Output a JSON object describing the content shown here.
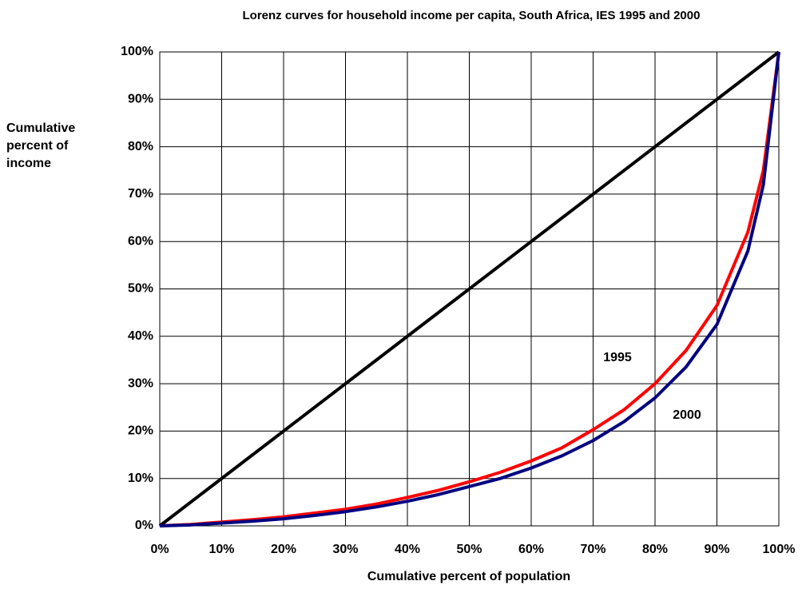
{
  "chart_data": {
    "type": "line",
    "title": "Lorenz curves for household income per capita, South Africa, IES 1995 and 2000",
    "x_label": "Cumulative percent of population",
    "y_label": "Cumulative percent of income",
    "xlim": [
      0,
      100
    ],
    "ylim": [
      0,
      100
    ],
    "xticks": [
      {
        "value": 0,
        "label": "0%"
      },
      {
        "value": 10,
        "label": "10%"
      },
      {
        "value": 20,
        "label": "20%"
      },
      {
        "value": 30,
        "label": "30%"
      },
      {
        "value": 40,
        "label": "40%"
      },
      {
        "value": 50,
        "label": "50%"
      },
      {
        "value": 60,
        "label": "60%"
      },
      {
        "value": 70,
        "label": "70%"
      },
      {
        "value": 80,
        "label": "80%"
      },
      {
        "value": 90,
        "label": "90%"
      },
      {
        "value": 100,
        "label": "100%"
      }
    ],
    "yticks": [
      {
        "value": 0,
        "label": "0%"
      },
      {
        "value": 10,
        "label": "10%"
      },
      {
        "value": 20,
        "label": "20%"
      },
      {
        "value": 30,
        "label": "30%"
      },
      {
        "value": 40,
        "label": "40%"
      },
      {
        "value": 50,
        "label": "50%"
      },
      {
        "value": 60,
        "label": "60%"
      },
      {
        "value": 70,
        "label": "70%"
      },
      {
        "value": 80,
        "label": "80%"
      },
      {
        "value": 90,
        "label": "90%"
      },
      {
        "value": 100,
        "label": "100%"
      }
    ],
    "grid": true,
    "series": [
      {
        "color": "#000000",
        "x": [
          0,
          100
        ],
        "values": [
          0,
          100
        ]
      },
      {
        "name": "1995",
        "color": "#ff0000",
        "x": [
          0,
          5,
          10,
          15,
          20,
          25,
          30,
          35,
          40,
          45,
          50,
          55,
          60,
          65,
          70,
          75,
          80,
          85,
          90,
          95,
          97.5,
          100
        ],
        "values": [
          0,
          0.3,
          0.8,
          1.3,
          1.9,
          2.7,
          3.5,
          4.6,
          6,
          7.5,
          9.3,
          11.3,
          13.7,
          16.5,
          20.3,
          24.5,
          30,
          37,
          46.5,
          62,
          75,
          100
        ]
      },
      {
        "name": "2000",
        "color": "#000080",
        "x": [
          0,
          5,
          10,
          15,
          20,
          25,
          30,
          35,
          40,
          45,
          50,
          55,
          60,
          65,
          70,
          75,
          80,
          85,
          90,
          95,
          97.5,
          100
        ],
        "values": [
          0,
          0.2,
          0.6,
          1,
          1.5,
          2.2,
          3,
          4,
          5.2,
          6.6,
          8.3,
          10,
          12.2,
          14.8,
          18,
          22,
          27,
          33.5,
          42.5,
          58,
          72,
          100
        ]
      }
    ]
  }
}
